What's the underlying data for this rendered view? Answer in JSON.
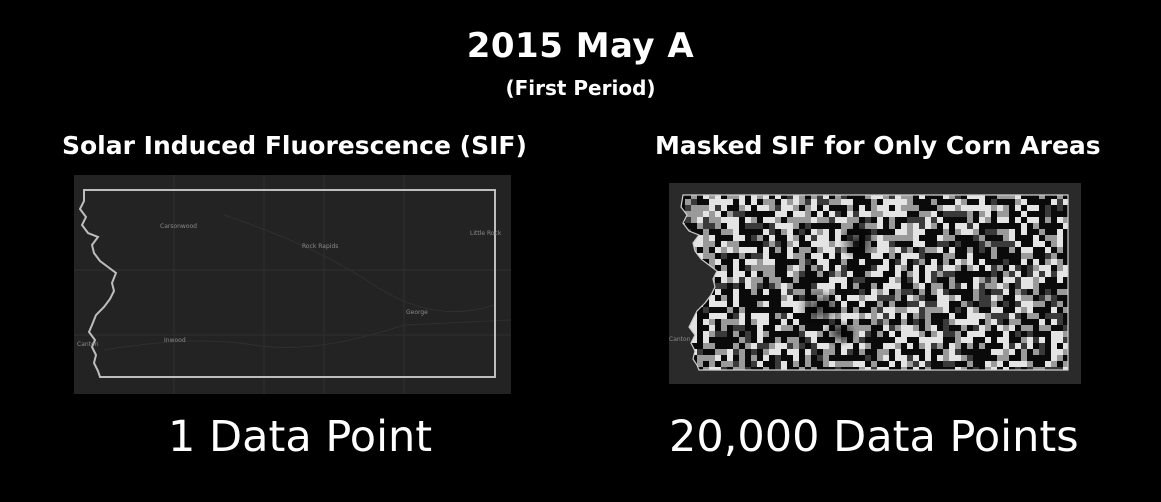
{
  "header": {
    "title": "2015 May A",
    "subtitle": "(First Period)"
  },
  "left_panel": {
    "title": "Solar Induced Fluorescence (SIF)",
    "count_label": "1 Data Point",
    "map_labels": [
      "Carsonwood",
      "Rock Rapids",
      "Little Rock",
      "George",
      "Inwood",
      "Canton"
    ]
  },
  "right_panel": {
    "title": "Masked SIF for Only Corn Areas",
    "count_label": "20,000 Data Points",
    "map_labels": [
      "Canton"
    ]
  }
}
